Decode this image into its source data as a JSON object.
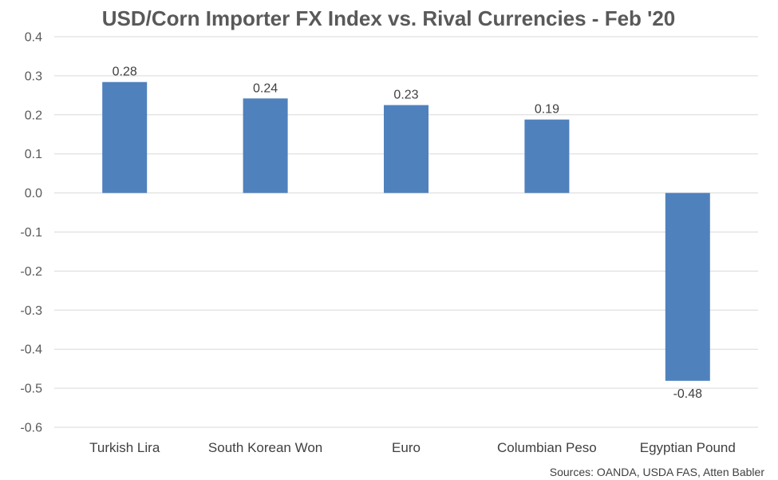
{
  "chart_data": {
    "type": "bar",
    "title": "USD/Corn Importer FX Index vs. Rival Currencies - Feb '20",
    "xlabel": "",
    "ylabel": "",
    "categories": [
      "Turkish Lira",
      "South Korean Won",
      "Euro",
      "Columbian Peso",
      "Egyptian Pound"
    ],
    "values": [
      0.284,
      0.242,
      0.225,
      0.188,
      -0.481
    ],
    "data_labels": [
      "0.28",
      "0.24",
      "0.23",
      "0.19",
      "-0.48"
    ],
    "ylim": [
      -0.6,
      0.4
    ],
    "yticks": [
      0.4,
      0.3,
      0.2,
      0.1,
      0.0,
      -0.1,
      -0.2,
      -0.3,
      -0.4,
      -0.5,
      -0.6
    ],
    "ytick_labels": [
      "0.4",
      "0.3",
      "0.2",
      "0.1",
      "0.0",
      "-0.1",
      "-0.2",
      "-0.3",
      "-0.4",
      "-0.5",
      "-0.6"
    ],
    "grid": true,
    "legend": "none",
    "bar_color": "#4f81bd",
    "source_note": "Sources: OANDA, USDA FAS, Atten Babler"
  }
}
